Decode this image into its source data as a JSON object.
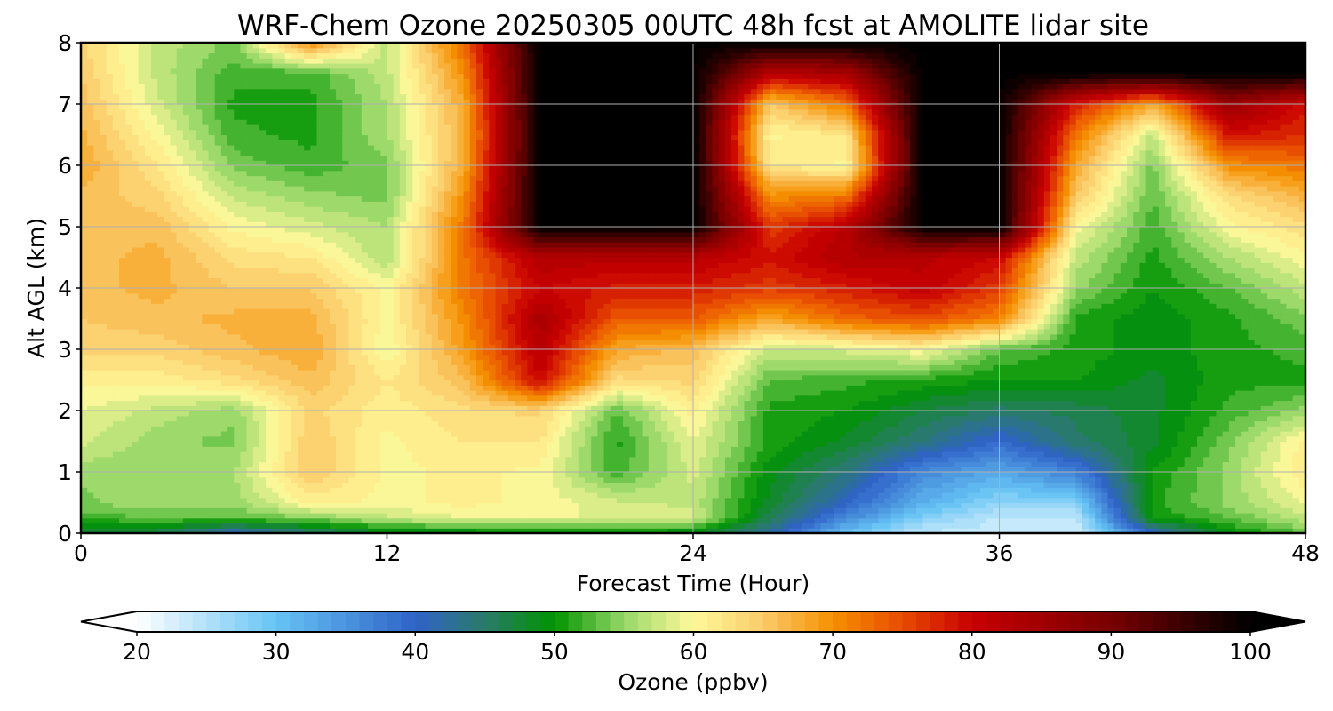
{
  "chart_data": {
    "type": "heatmap",
    "title": "WRF-Chem Ozone  20250305 00UTC 48h fcst at AMOLITE lidar site",
    "xlabel": "Forecast Time (Hour)",
    "ylabel": "Alt AGL (km)",
    "xlim": [
      0,
      48
    ],
    "ylim": [
      0,
      8
    ],
    "xticks": [
      "0",
      "12",
      "24",
      "36",
      "48"
    ],
    "yticks": [
      "0",
      "1",
      "2",
      "3",
      "4",
      "5",
      "6",
      "7",
      "8"
    ],
    "grid": true,
    "x": [
      0,
      3,
      6,
      9,
      12,
      15,
      18,
      21,
      24,
      27,
      30,
      33,
      36,
      39,
      42,
      45,
      48
    ],
    "y": [
      0,
      0.25,
      0.5,
      1,
      1.5,
      2,
      2.5,
      3,
      3.5,
      4,
      4.5,
      5,
      5.5,
      6,
      6.5,
      7,
      7.5,
      8
    ],
    "z": [
      [
        47,
        46,
        40,
        44,
        48,
        48,
        49,
        49,
        48,
        42,
        30,
        24,
        24,
        23,
        40,
        49,
        53
      ],
      [
        52,
        53,
        53,
        54,
        57,
        59,
        59,
        59,
        58,
        46,
        36,
        28,
        24,
        24,
        50,
        53,
        57
      ],
      [
        54,
        56,
        55,
        61,
        60,
        61,
        60,
        58,
        57,
        48,
        40,
        32,
        27,
        28,
        51,
        55,
        59
      ],
      [
        55,
        55,
        56,
        65,
        60,
        61,
        60,
        52,
        58,
        49,
        44,
        36,
        33,
        37,
        50,
        55,
        62
      ],
      [
        58,
        55,
        54,
        65,
        60,
        62,
        62,
        51,
        59,
        51,
        48,
        44,
        39,
        45,
        48,
        54,
        61
      ],
      [
        59,
        57,
        55,
        64,
        61,
        63,
        64,
        53,
        61,
        51,
        50,
        47,
        45,
        46,
        48,
        52,
        55
      ],
      [
        61,
        61,
        63,
        66,
        62,
        66,
        80,
        63,
        64,
        53,
        52,
        51,
        50,
        50,
        48,
        51,
        51
      ],
      [
        64,
        64,
        66,
        68,
        59,
        69,
        82,
        68,
        66,
        57,
        58,
        60,
        53,
        51,
        49,
        51,
        52
      ],
      [
        65,
        66,
        67,
        67,
        60,
        70,
        84,
        74,
        74,
        68,
        73,
        75,
        71,
        51,
        49,
        51,
        54
      ],
      [
        66,
        67,
        65,
        65,
        60,
        72,
        80,
        78,
        78,
        76,
        78,
        81,
        76,
        55,
        50,
        53,
        57
      ],
      [
        66,
        67,
        63,
        62,
        56,
        72,
        83,
        82,
        82,
        79,
        83,
        82,
        80,
        57,
        51,
        56,
        60
      ],
      [
        66,
        66,
        60,
        58,
        56,
        72,
        100,
        100,
        100,
        76,
        82,
        100,
        100,
        60,
        52,
        60,
        63
      ],
      [
        66,
        64,
        57,
        55,
        54,
        70,
        100,
        100,
        100,
        70,
        72,
        100,
        100,
        65,
        53,
        63,
        67
      ],
      [
        68,
        62,
        54,
        52,
        54,
        68,
        100,
        100,
        100,
        62,
        60,
        100,
        100,
        68,
        54,
        70,
        72
      ],
      [
        67,
        60,
        52,
        51,
        56,
        67,
        100,
        100,
        100,
        60,
        62,
        100,
        100,
        72,
        57,
        79,
        77
      ],
      [
        66,
        58,
        51,
        51,
        56,
        68,
        100,
        100,
        100,
        65,
        72,
        100,
        100,
        78,
        68,
        86,
        79
      ],
      [
        65,
        57,
        52,
        52,
        57,
        70,
        100,
        100,
        100,
        82,
        84,
        100,
        100,
        100,
        100,
        100,
        100
      ],
      [
        64,
        57,
        54,
        70,
        57,
        73,
        100,
        100,
        100,
        100,
        100,
        100,
        100,
        100,
        100,
        100,
        100
      ]
    ],
    "colorbar": {
      "label": "Ozone  (ppbv)",
      "vmin": 20,
      "vmax": 100,
      "ticks": [
        "20",
        "30",
        "40",
        "50",
        "60",
        "70",
        "80",
        "90",
        "100"
      ],
      "extend": "both",
      "stops": [
        {
          "v": 20,
          "c": "#ffffff"
        },
        {
          "v": 30,
          "c": "#66c4f4"
        },
        {
          "v": 40,
          "c": "#2f63c8"
        },
        {
          "v": 45,
          "c": "#2a7a6a"
        },
        {
          "v": 50,
          "c": "#009400"
        },
        {
          "v": 55,
          "c": "#98d868"
        },
        {
          "v": 60,
          "c": "#fff99a"
        },
        {
          "v": 65,
          "c": "#fbcb6a"
        },
        {
          "v": 70,
          "c": "#f59000"
        },
        {
          "v": 75,
          "c": "#e84c00"
        },
        {
          "v": 80,
          "c": "#c80000"
        },
        {
          "v": 90,
          "c": "#780000"
        },
        {
          "v": 100,
          "c": "#000000"
        }
      ]
    }
  }
}
